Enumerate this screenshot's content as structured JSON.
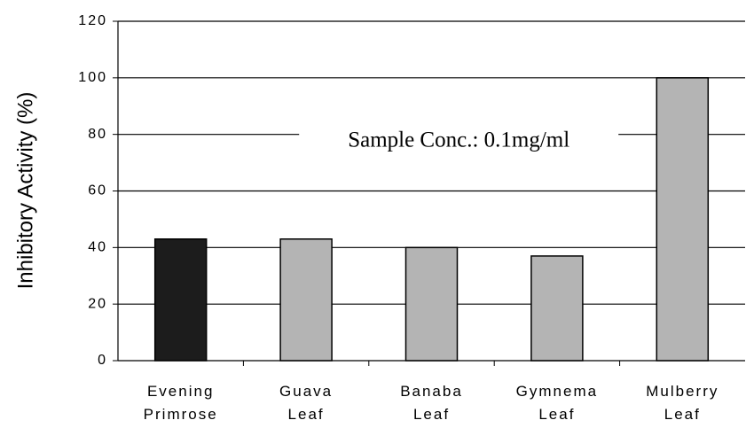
{
  "chart_data": {
    "type": "bar",
    "ylabel": "Inhibitory Activity (%)",
    "annotation": "Sample Conc.: 0.1mg/ml",
    "categories": [
      "Evening Primrose",
      "Guava Leaf",
      "Banaba Leaf",
      "Gymnema Leaf",
      "Mulberry Leaf"
    ],
    "values": [
      43,
      43,
      40,
      37,
      100
    ],
    "colors": [
      "#1c1c1c",
      "#b4b4b4",
      "#b4b4b4",
      "#b4b4b4",
      "#b4b4b4"
    ],
    "ylim": [
      0,
      120
    ],
    "yticks": [
      0,
      20,
      40,
      60,
      80,
      100,
      120
    ],
    "grid": true
  }
}
